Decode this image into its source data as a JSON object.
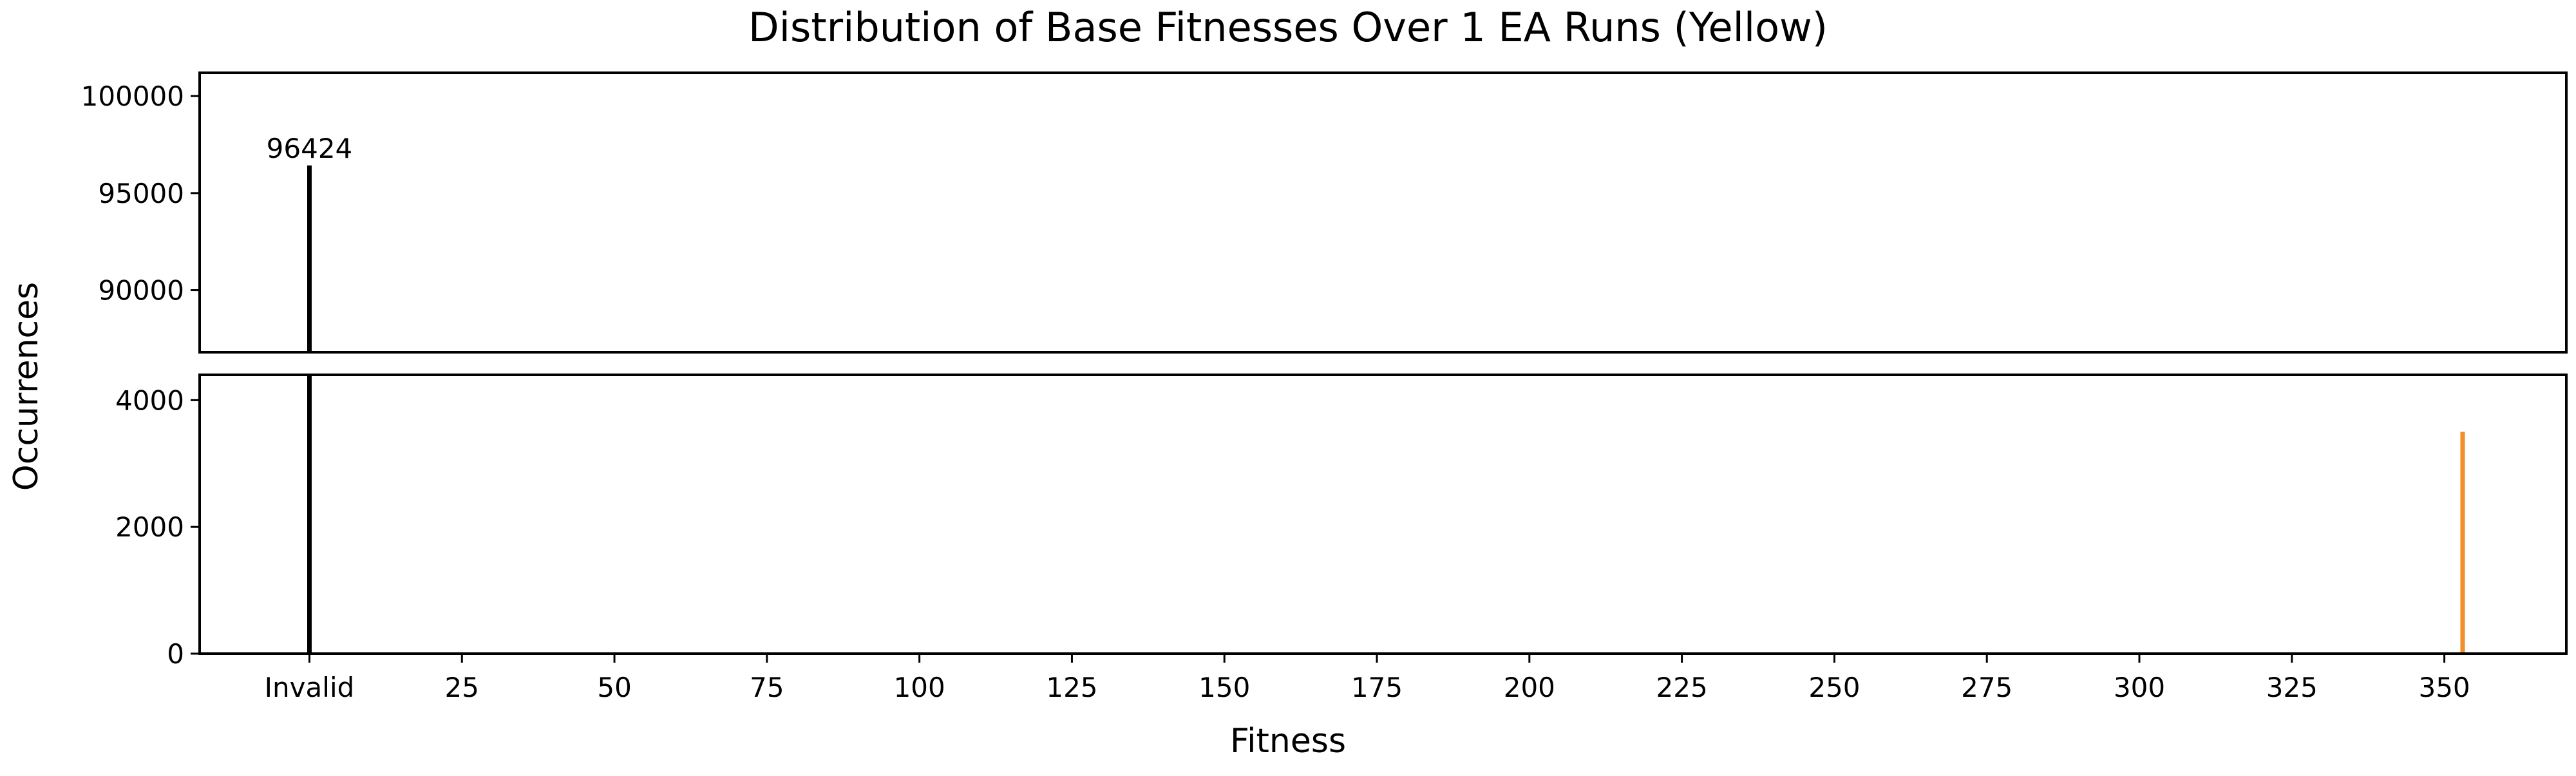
{
  "chart_data": {
    "type": "bar",
    "title": "Distribution of Base Fitnesses Over 1 EA Runs (Yellow)",
    "xlabel": "Fitness",
    "ylabel": "Occurrences",
    "x_tick_labels": [
      "Invalid",
      "25",
      "50",
      "75",
      "100",
      "125",
      "150",
      "175",
      "200",
      "225",
      "250",
      "275",
      "300",
      "325",
      "350"
    ],
    "x_tick_values": [
      0,
      25,
      50,
      75,
      100,
      125,
      150,
      175,
      200,
      225,
      250,
      275,
      300,
      325,
      350
    ],
    "xlim": [
      -18,
      370
    ],
    "broken_y_axis": true,
    "upper_ylim": [
      86800,
      101200
    ],
    "upper_yticks": [
      90000,
      95000,
      100000
    ],
    "lower_ylim": [
      0,
      4400
    ],
    "lower_yticks": [
      0,
      2000,
      4000
    ],
    "bars": [
      {
        "x": 0,
        "x_label": "Invalid",
        "value": 96424,
        "color": "#000000",
        "label": "96424"
      },
      {
        "x": 353,
        "x_label": "353",
        "value": 3500,
        "color": "#f28e2b"
      }
    ],
    "grid": false,
    "legend": false
  }
}
